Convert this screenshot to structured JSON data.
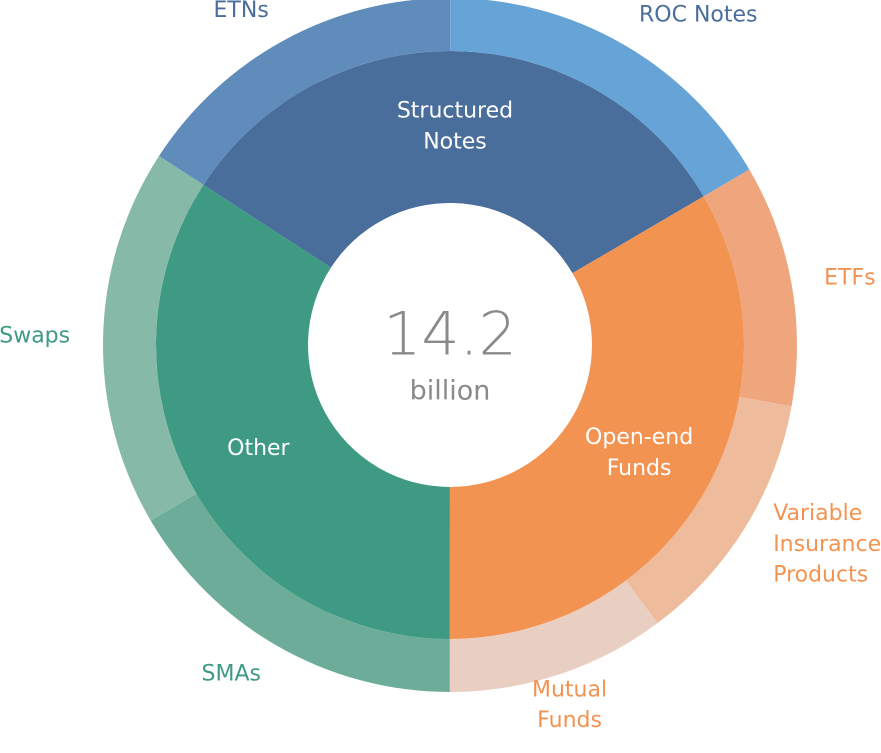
{
  "chart_data": {
    "type": "sunburst",
    "center_value": "14.2",
    "center_label": "billion",
    "series": [
      {
        "name": "Structured\nNotes",
        "color": "#4a6e9c",
        "value": 4.6,
        "children": [
          {
            "name": "ETNs",
            "color": "#5f8cbb",
            "label_color": "#4a6e9c",
            "value": 2.25
          },
          {
            "name": "ROC Notes",
            "color": "#66a3d6",
            "label_color": "#4a6e9c",
            "value": 2.35
          }
        ]
      },
      {
        "name": "Open-end\nFunds",
        "color": "#f39352",
        "value": 4.75,
        "children": [
          {
            "name": "ETFs",
            "color": "#efa67d",
            "label_color": "#f39352",
            "value": 1.6
          },
          {
            "name": "Variable\nInsurance\nProducts",
            "color": "#eebb9c",
            "label_color": "#f39352",
            "value": 1.7
          },
          {
            "name": "Mutual\nFunds",
            "color": "#e9cfc1",
            "label_color": "#f39352",
            "value": 1.45
          }
        ]
      },
      {
        "name": "Other",
        "color": "#3e9a82",
        "value": 4.85,
        "children": [
          {
            "name": "SMAs",
            "color": "#6cac98",
            "label_color": "#3e9a82",
            "value": 2.35
          },
          {
            "name": "Swaps",
            "color": "#86b9a7",
            "label_color": "#3e9a82",
            "value": 2.5
          }
        ]
      }
    ]
  }
}
